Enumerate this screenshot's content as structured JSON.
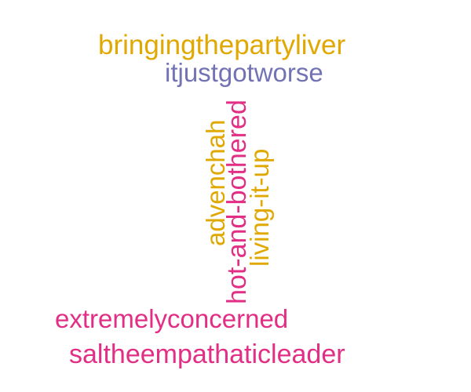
{
  "colors": {
    "gold": "#e0a800",
    "purple": "#7272b5",
    "pink": "#e22e84",
    "background": "#ffffff"
  },
  "words": [
    {
      "text": "bringingthepartyliver",
      "color": "gold",
      "orientation": "horizontal"
    },
    {
      "text": "itjustgotworse",
      "color": "purple",
      "orientation": "horizontal"
    },
    {
      "text": "advenchah",
      "color": "gold",
      "orientation": "vertical"
    },
    {
      "text": "hot-and-bothered",
      "color": "pink",
      "orientation": "vertical"
    },
    {
      "text": "living-it-up",
      "color": "gold",
      "orientation": "vertical"
    },
    {
      "text": "extremelyconcerned",
      "color": "pink",
      "orientation": "horizontal"
    },
    {
      "text": "saltheempathaticleader",
      "color": "pink",
      "orientation": "horizontal"
    }
  ]
}
